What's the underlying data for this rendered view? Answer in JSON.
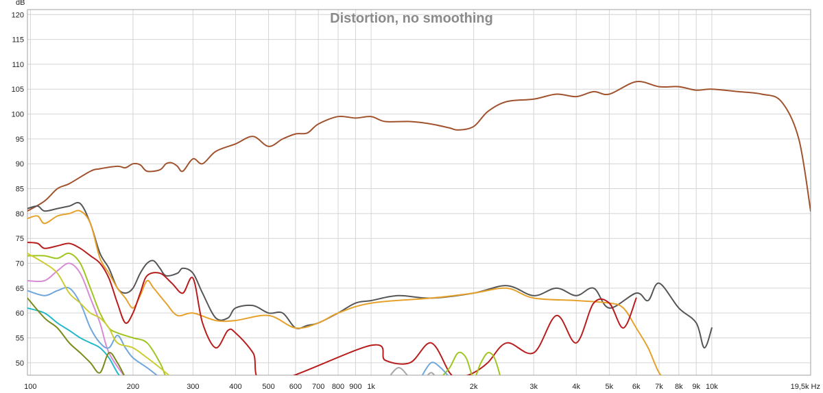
{
  "chart_data": {
    "type": "line",
    "title": "Distortion, no smoothing",
    "ylabel": "dB",
    "xunit": "Hz",
    "x_scale": "log",
    "xlim": [
      98,
      19500
    ],
    "ylim": [
      47.5,
      121
    ],
    "grid": true,
    "legend": "none",
    "x_ticks": [
      {
        "v": 100,
        "label": "100"
      },
      {
        "v": 200,
        "label": "200"
      },
      {
        "v": 300,
        "label": "300"
      },
      {
        "v": 400,
        "label": "400"
      },
      {
        "v": 500,
        "label": "500"
      },
      {
        "v": 600,
        "label": "600"
      },
      {
        "v": 700,
        "label": "700"
      },
      {
        "v": 800,
        "label": "800"
      },
      {
        "v": 900,
        "label": "900"
      },
      {
        "v": 1000,
        "label": "1k"
      },
      {
        "v": 2000,
        "label": "2k"
      },
      {
        "v": 3000,
        "label": "3k"
      },
      {
        "v": 4000,
        "label": "4k"
      },
      {
        "v": 5000,
        "label": "5k"
      },
      {
        "v": 6000,
        "label": "6k"
      },
      {
        "v": 7000,
        "label": "7k"
      },
      {
        "v": 8000,
        "label": "8k"
      },
      {
        "v": 9000,
        "label": "9k"
      },
      {
        "v": 10000,
        "label": "10k"
      },
      {
        "v": 19500,
        "label": "19,5k Hz"
      }
    ],
    "y_ticks": [
      {
        "v": 50,
        "label": "50"
      },
      {
        "v": 55,
        "label": "55"
      },
      {
        "v": 60,
        "label": "60"
      },
      {
        "v": 65,
        "label": "65"
      },
      {
        "v": 70,
        "label": "70"
      },
      {
        "v": 75,
        "label": "75"
      },
      {
        "v": 80,
        "label": "80"
      },
      {
        "v": 85,
        "label": "85"
      },
      {
        "v": 90,
        "label": "90"
      },
      {
        "v": 95,
        "label": "95"
      },
      {
        "v": 100,
        "label": "100"
      },
      {
        "v": 105,
        "label": "105"
      },
      {
        "v": 110,
        "label": "110"
      },
      {
        "v": 115,
        "label": "115"
      },
      {
        "v": 120,
        "label": "120"
      }
    ],
    "series": [
      {
        "color": "#a0522d",
        "x": [
          98,
          110,
          120,
          130,
          150,
          160,
          180,
          190,
          200,
          210,
          220,
          240,
          250,
          260,
          270,
          280,
          300,
          320,
          350,
          400,
          450,
          500,
          550,
          600,
          650,
          700,
          800,
          900,
          1000,
          1100,
          1300,
          1500,
          1700,
          1800,
          2000,
          2200,
          2500,
          3000,
          3500,
          4000,
          4500,
          5000,
          6000,
          7000,
          8000,
          9000,
          10000,
          12000,
          14000,
          16000,
          18000,
          19500
        ],
        "y": [
          80.5,
          82.5,
          85,
          86,
          88.5,
          89,
          89.5,
          89.2,
          90,
          89.8,
          88.5,
          88.8,
          90,
          90.2,
          89.5,
          88.5,
          91,
          90,
          92.5,
          94,
          95.5,
          93.5,
          95,
          96,
          96.2,
          98,
          99.5,
          99.2,
          99.5,
          98.5,
          98.5,
          98,
          97.2,
          96.8,
          97.5,
          100.5,
          102.5,
          103,
          104,
          103.5,
          104.5,
          104,
          106.5,
          105.5,
          105.5,
          104.8,
          105,
          104.5,
          104,
          102.5,
          95,
          80.5
        ]
      },
      {
        "color": "#555555",
        "x": [
          98,
          105,
          110,
          120,
          130,
          140,
          150,
          160,
          170,
          180,
          190,
          200,
          210,
          220,
          230,
          240,
          250,
          270,
          280,
          300,
          320,
          350,
          380,
          400,
          450,
          500,
          550,
          600,
          650,
          700,
          800,
          900,
          1000,
          1200,
          1500,
          2000,
          2500,
          3000,
          3500,
          4000,
          4500,
          5000,
          6000,
          6500,
          7000,
          8000,
          9000,
          9500,
          10000
        ],
        "y": [
          81,
          81.5,
          80.5,
          81,
          81.5,
          82,
          78,
          72,
          69,
          65,
          64,
          65,
          68,
          70,
          70.5,
          69,
          67.5,
          68,
          69,
          68,
          64,
          59,
          59,
          61,
          61.5,
          60,
          60,
          57,
          57.5,
          58,
          60,
          62,
          62.5,
          63.5,
          63,
          64,
          65.5,
          63.5,
          65,
          63.5,
          65,
          61,
          64,
          62.5,
          66,
          61,
          58,
          53,
          57
        ]
      },
      {
        "color": "#e6a12a",
        "x": [
          98,
          105,
          110,
          120,
          130,
          140,
          150,
          160,
          170,
          180,
          190,
          200,
          210,
          220,
          230,
          250,
          270,
          300,
          350,
          400,
          500,
          600,
          700,
          800,
          1000,
          1500,
          2000,
          2500,
          3000,
          4000,
          5000,
          5500,
          6000,
          6500,
          7000,
          7500
        ],
        "y": [
          79,
          79.5,
          78,
          79.5,
          80,
          80.5,
          78,
          71,
          68,
          65,
          63,
          61,
          63.5,
          66.5,
          65,
          62,
          59.5,
          60,
          58.5,
          58.5,
          59.5,
          57,
          58,
          60,
          62,
          63,
          64,
          65,
          63,
          62.5,
          62,
          61,
          57,
          53,
          48,
          46
        ]
      },
      {
        "color": "#b81c1c",
        "x": [
          98,
          105,
          110,
          120,
          130,
          140,
          150,
          160,
          170,
          180,
          190,
          200,
          210,
          220,
          240,
          260,
          280,
          300,
          320,
          350,
          380,
          400,
          450,
          500,
          1000,
          1100,
          1300,
          1500,
          1700,
          1800,
          2000,
          2200,
          2500,
          3000,
          3500,
          4000,
          4500,
          5000,
          5500,
          6000
        ],
        "y": [
          74.2,
          74,
          73,
          73.5,
          74,
          73,
          71.5,
          70,
          67,
          62,
          58,
          60,
          64,
          67.5,
          68,
          66,
          64,
          67,
          58,
          53,
          56.5,
          56,
          52,
          46,
          53.5,
          50.5,
          50,
          54,
          48,
          47,
          48,
          50,
          54,
          52,
          59.5,
          54,
          62,
          62,
          57,
          63
        ]
      },
      {
        "color": "#9fc51e",
        "x": [
          98,
          110,
          120,
          130,
          140,
          150,
          160,
          170,
          180,
          200,
          220,
          240,
          250
        ],
        "y": [
          71.5,
          71.5,
          71,
          72,
          70,
          65,
          60,
          57,
          56,
          55,
          54,
          50,
          47
        ]
      },
      {
        "color": "#d98ad6",
        "x": [
          98,
          110,
          120,
          130,
          140,
          150,
          160,
          170,
          190
        ],
        "y": [
          66.5,
          66.5,
          68.5,
          70,
          68,
          63,
          58,
          52,
          47
        ]
      },
      {
        "color": "#6fa6dc",
        "x": [
          98,
          110,
          120,
          130,
          140,
          150,
          160,
          170,
          180,
          190,
          200,
          220,
          240
        ],
        "y": [
          64.5,
          63.5,
          64.5,
          65,
          62,
          57,
          54,
          53,
          55.5,
          53,
          51,
          49,
          47
        ]
      },
      {
        "color": "#cccc33",
        "x": [
          98,
          110,
          120,
          130,
          140,
          150,
          160,
          170,
          180,
          200,
          220,
          240,
          260
        ],
        "y": [
          72,
          70,
          68,
          64,
          62,
          60,
          59,
          57,
          54,
          53,
          51,
          49,
          47
        ]
      },
      {
        "color": "#26b8c9",
        "x": [
          98,
          110,
          120,
          130,
          140,
          150,
          160,
          170,
          180,
          190
        ],
        "y": [
          61,
          60,
          58,
          56.5,
          55,
          54,
          53,
          51,
          48,
          46
        ]
      },
      {
        "color": "#7a8a1a",
        "x": [
          98,
          110,
          120,
          130,
          140,
          150,
          160,
          170,
          180,
          190
        ],
        "y": [
          63,
          59,
          57,
          54,
          52,
          50,
          48,
          52,
          50,
          47
        ]
      },
      {
        "color": "#a7a7a7",
        "x": [
          1100,
          1200,
          1300,
          1400,
          1500,
          1600,
          1700
        ],
        "y": [
          46,
          49,
          47,
          46,
          48,
          46,
          47
        ]
      },
      {
        "color": "#9fc51e",
        "x": [
          1600,
          1700,
          1800,
          1900,
          2000,
          2100,
          2200,
          2300,
          2400
        ],
        "y": [
          47,
          49,
          52,
          51,
          47,
          50,
          52,
          51,
          47
        ]
      },
      {
        "color": "#6fa6dc",
        "x": [
          1400,
          1500,
          1600,
          1700
        ],
        "y": [
          47,
          50,
          49,
          47
        ]
      }
    ]
  }
}
